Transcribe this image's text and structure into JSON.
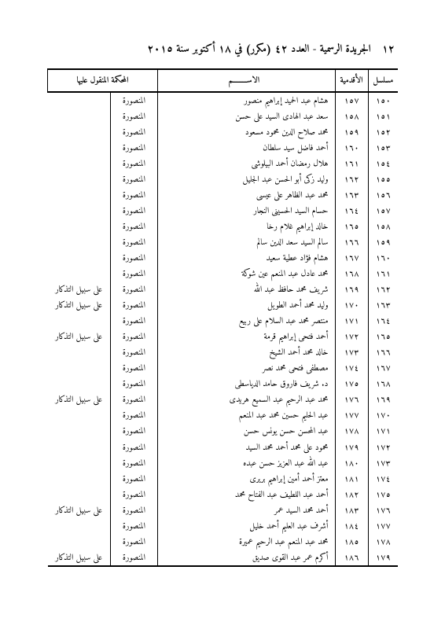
{
  "page": {
    "page_number": "١٢",
    "title": "الجريدة الرسمية - العدد ٤٢ (مكرر) في ١٨ أكتوبر سنة ٢٠١٥"
  },
  "table": {
    "headers": {
      "serial": "مسلسل",
      "seniority": "الأقدمية",
      "name": "الاســـــــــم",
      "court": "المحكمة المنقول عليها",
      "note": ""
    },
    "rows": [
      {
        "serial": "١٥٠",
        "seniority": "١٥٧",
        "name": "هشام عبد الحميد إبراهيم منصور",
        "court": "المنصورة",
        "note": ""
      },
      {
        "serial": "١٥١",
        "seniority": "١٥٨",
        "name": "سعد عبد الهادى السيد على حسن",
        "court": "المنصورة",
        "note": ""
      },
      {
        "serial": "١٥٢",
        "seniority": "١٥٩",
        "name": "محمد صلاح الدين محمود مسعود",
        "court": "المنصورة",
        "note": ""
      },
      {
        "serial": "١٥٣",
        "seniority": "١٦٠",
        "name": "أحمد فاضل سيد سلطان",
        "court": "المنصورة",
        "note": ""
      },
      {
        "serial": "١٥٤",
        "seniority": "١٦١",
        "name": "هلال رمضان أحمد البيلوشى",
        "court": "المنصورة",
        "note": ""
      },
      {
        "serial": "١٥٥",
        "seniority": "١٦٢",
        "name": "وليد زكى أبو الحسن عبد الجليل",
        "court": "المنصورة",
        "note": ""
      },
      {
        "serial": "١٥٦",
        "seniority": "١٦٣",
        "name": "محمد عبد الظاهر على عيسى",
        "court": "المنصورة",
        "note": ""
      },
      {
        "serial": "١٥٧",
        "seniority": "١٦٤",
        "name": "حسام السيد الحسينى النجار",
        "court": "المنصورة",
        "note": ""
      },
      {
        "serial": "١٥٨",
        "seniority": "١٦٥",
        "name": "خالد إبراهيم غلام رخا",
        "court": "المنصورة",
        "note": ""
      },
      {
        "serial": "١٥٩",
        "seniority": "١٦٦",
        "name": "سالم السيد سعد الدين سالم",
        "court": "المنصورة",
        "note": ""
      },
      {
        "serial": "١٦٠",
        "seniority": "١٦٧",
        "name": "هشام فؤاد عطية سعيد",
        "court": "المنصورة",
        "note": ""
      },
      {
        "serial": "١٦١",
        "seniority": "١٦٨",
        "name": "محمد عادل عبد المنعم عين شوكة",
        "court": "المنصورة",
        "note": ""
      },
      {
        "serial": "١٦٢",
        "seniority": "١٦٩",
        "name": "شريف محمد حافظ عبد الله",
        "court": "المنصورة",
        "note": "على سبيل التذكار"
      },
      {
        "serial": "١٦٣",
        "seniority": "١٧٠",
        "name": "وليد محمد أحمد الطويل",
        "court": "المنصورة",
        "note": "على سبيل التذكار"
      },
      {
        "serial": "١٦٤",
        "seniority": "١٧١",
        "name": "منتصر محمد عبد السلام على ربيع",
        "court": "المنصورة",
        "note": ""
      },
      {
        "serial": "١٦٥",
        "seniority": "١٧٢",
        "name": "أحمد فتحى إبراهيم قرمة",
        "court": "المنصورة",
        "note": "على سبيل التذكار"
      },
      {
        "serial": "١٦٦",
        "seniority": "١٧٣",
        "name": "خالد محمد أحمد الشيخ",
        "court": "المنصورة",
        "note": ""
      },
      {
        "serial": "١٦٧",
        "seniority": "١٧٤",
        "name": "مصطفى فتحى محمد نصر",
        "court": "المنصورة",
        "note": ""
      },
      {
        "serial": "١٦٨",
        "seniority": "١٧٥",
        "name": "د. شريف فاروق حامد الدياسطى",
        "court": "المنصورة",
        "note": ""
      },
      {
        "serial": "١٦٩",
        "seniority": "١٧٦",
        "name": "محمد عبد الرحيم عبد السميع هريدى",
        "court": "المنصورة",
        "note": "على سبيل التذكار"
      },
      {
        "serial": "١٧٠",
        "seniority": "١٧٧",
        "name": "عبد الحليم حسين محمد عبد المنعم",
        "court": "المنصورة",
        "note": ""
      },
      {
        "serial": "١٧١",
        "seniority": "١٧٨",
        "name": "عبد المحسن حسن يونس حسن",
        "court": "المنصورة",
        "note": ""
      },
      {
        "serial": "١٧٢",
        "seniority": "١٧٩",
        "name": "محمود على محمد أحمد محمد السيد",
        "court": "المنصورة",
        "note": ""
      },
      {
        "serial": "١٧٣",
        "seniority": "١٨٠",
        "name": "عبد الله عبد العزيز حسن عبده",
        "court": "المنصورة",
        "note": ""
      },
      {
        "serial": "١٧٤",
        "seniority": "١٨١",
        "name": "معتز أحمد أمين إبراهيم بريرى",
        "court": "المنصورة",
        "note": ""
      },
      {
        "serial": "١٧٥",
        "seniority": "١٨٢",
        "name": "أحمد عبد اللطيف عبد الفتاح محمد",
        "court": "المنصورة",
        "note": ""
      },
      {
        "serial": "١٧٦",
        "seniority": "١٨٣",
        "name": "أحمد محمد السيد عمر",
        "court": "المنصورة",
        "note": "على سبيل التذكار"
      },
      {
        "serial": "١٧٧",
        "seniority": "١٨٤",
        "name": "أشرف عبد العليم أحمد خليل",
        "court": "المنصورة",
        "note": ""
      },
      {
        "serial": "١٧٨",
        "seniority": "١٨٥",
        "name": "محمد عبد المنعم عبد الرحيم عميرة",
        "court": "المنصورة",
        "note": ""
      },
      {
        "serial": "١٧٩",
        "seniority": "١٨٦",
        "name": "أكرم عمر عبد القوى صديق",
        "court": "المنصورة",
        "note": "على سبيل التذكار"
      }
    ]
  }
}
